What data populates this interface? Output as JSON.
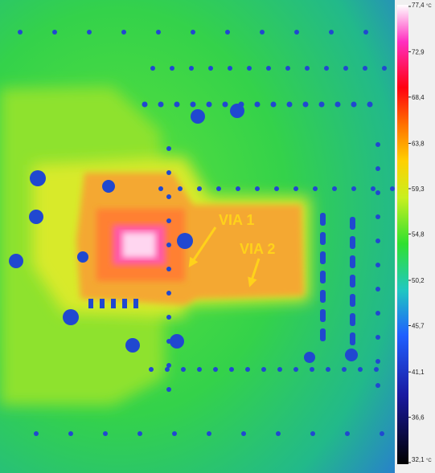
{
  "colorbar": {
    "unit": "°C",
    "ticks": [
      {
        "value": 77.4,
        "label": "77,4"
      },
      {
        "value": 72.9,
        "label": "72,9"
      },
      {
        "value": 68.4,
        "label": "68,4"
      },
      {
        "value": 63.8,
        "label": "63,8"
      },
      {
        "value": 59.3,
        "label": "59,3"
      },
      {
        "value": 54.8,
        "label": "54,8"
      },
      {
        "value": 50.2,
        "label": "50,2"
      },
      {
        "value": 45.7,
        "label": "45,7"
      },
      {
        "value": 41.1,
        "label": "41,1"
      },
      {
        "value": 36.6,
        "label": "36,6"
      },
      {
        "value": 32.1,
        "label": "32,1"
      }
    ]
  },
  "annotations": [
    {
      "label": "VIA 1"
    },
    {
      "label": "VIA 2"
    }
  ]
}
